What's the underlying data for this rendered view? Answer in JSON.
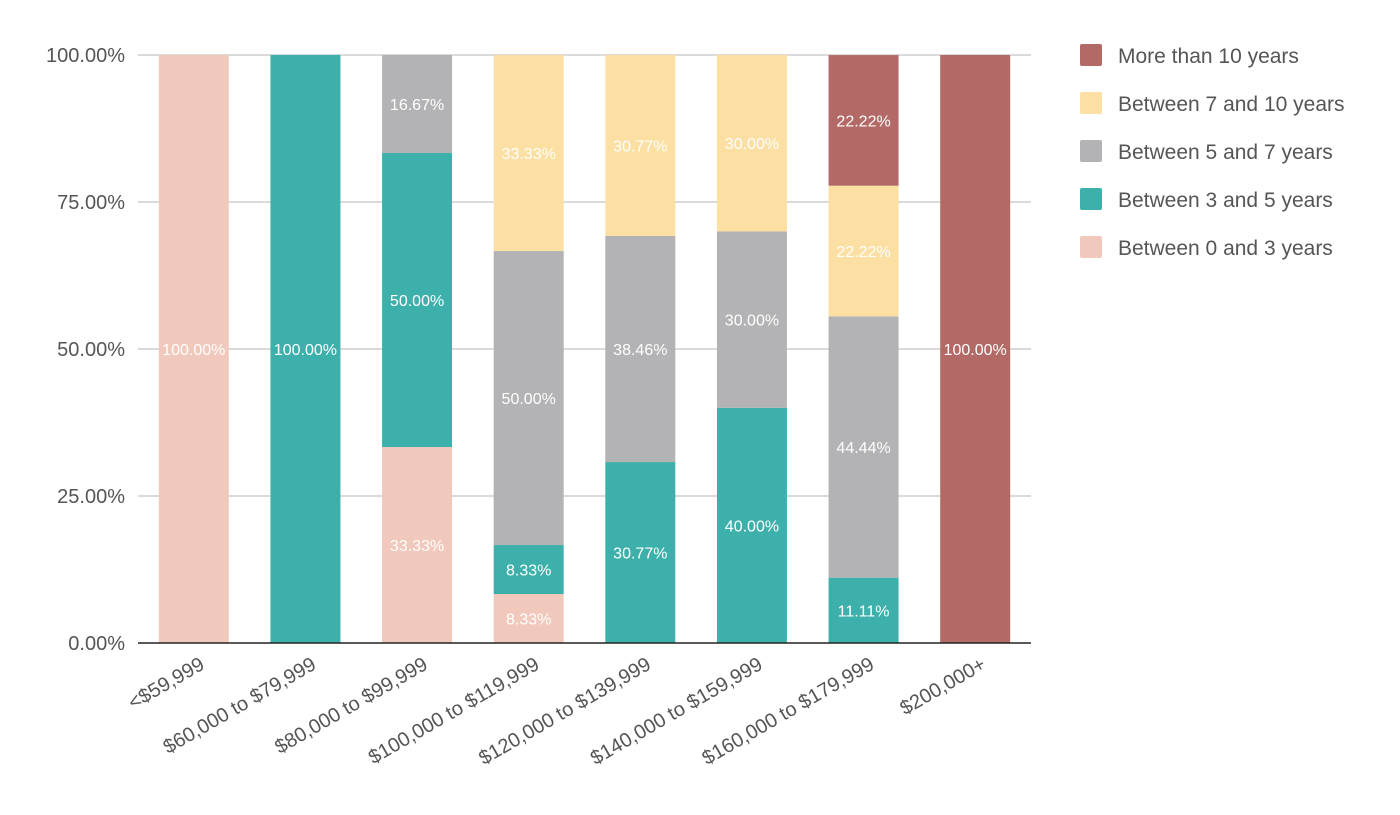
{
  "chart_data": {
    "type": "bar",
    "stacked": "percent",
    "title": "",
    "xlabel": "",
    "ylabel": "",
    "ylim": [
      0,
      100
    ],
    "yticks": [
      "0.00%",
      "25.00%",
      "50.00%",
      "75.00%",
      "100.00%"
    ],
    "categories": [
      "<$59,999",
      "$60,000 to $79,999",
      "$80,000 to $99,999",
      "$100,000 to $119,999",
      "$120,000 to $139,999",
      "$140,000 to $159,999",
      "$160,000 to $179,999",
      "$200,000+"
    ],
    "legend_position": "right",
    "series": [
      {
        "name": "Between 0 and 3 years",
        "color": "#f1c9bc",
        "values": [
          100,
          0,
          33.33,
          8.33,
          0,
          0,
          0,
          0
        ],
        "labels": [
          "100.00%",
          "",
          "33.33%",
          "8.33%",
          "",
          "",
          "",
          ""
        ]
      },
      {
        "name": "Between 3 and 5 years",
        "color": "#3eb0ab",
        "values": [
          0,
          100,
          50.0,
          8.33,
          30.77,
          40.0,
          11.11,
          0
        ],
        "labels": [
          "",
          "100.00%",
          "50.00%",
          "8.33%",
          "30.77%",
          "40.00%",
          "11.11%",
          ""
        ]
      },
      {
        "name": "Between 5 and 7 years",
        "color": "#b3b3b5",
        "values": [
          0,
          0,
          16.67,
          50.0,
          38.46,
          30.0,
          44.44,
          0
        ],
        "labels": [
          "",
          "",
          "16.67%",
          "50.00%",
          "38.46%",
          "30.00%",
          "44.44%",
          ""
        ]
      },
      {
        "name": "Between 7 and 10 years",
        "color": "#fcdfa2",
        "values": [
          0,
          0,
          0,
          33.33,
          30.77,
          30.0,
          22.22,
          0
        ],
        "labels": [
          "",
          "",
          "",
          "33.33%",
          "30.77%",
          "30.00%",
          "22.22%",
          ""
        ]
      },
      {
        "name": "More than 10 years",
        "color": "#b36a67",
        "values": [
          0,
          0,
          0,
          0,
          0,
          0,
          22.22,
          100
        ],
        "labels": [
          "",
          "",
          "",
          "",
          "",
          "",
          "22.22%",
          "100.00%"
        ]
      }
    ],
    "legend_order": [
      "More than 10 years",
      "Between 7 and 10 years",
      "Between 5 and 7 years",
      "Between 3 and 5 years",
      "Between 0 and 3 years"
    ]
  }
}
